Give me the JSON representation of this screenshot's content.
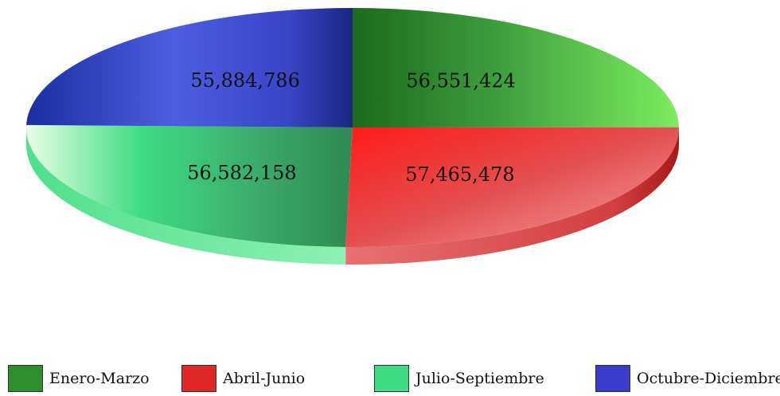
{
  "chart_data": {
    "type": "pie",
    "style": "3d-tilted",
    "categories": [
      "Enero-Marzo",
      "Abril-Junio",
      "Julio-Septiembre",
      "Octubre-Diciembre"
    ],
    "values": [
      56551424,
      57465478,
      56582158,
      55884786
    ],
    "data_labels": [
      "56,551,424",
      "57,465,478",
      "56,582,158",
      "55,884,786"
    ],
    "colors": [
      "#2f8f2f",
      "#e02828",
      "#3ddc84",
      "#3b3bcc"
    ],
    "legend_position": "bottom",
    "title": ""
  }
}
